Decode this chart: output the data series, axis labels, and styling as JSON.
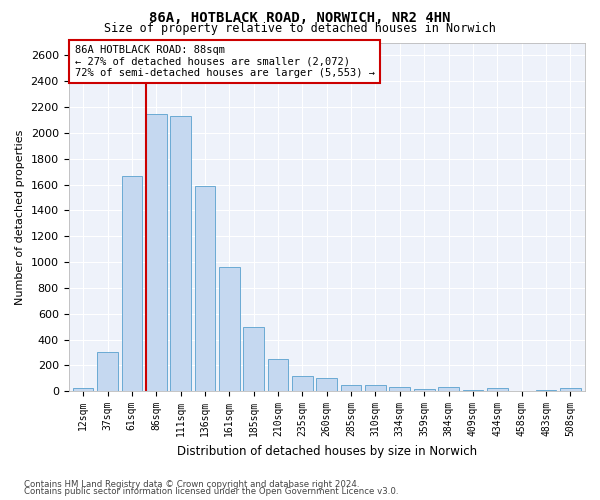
{
  "title": "86A, HOTBLACK ROAD, NORWICH, NR2 4HN",
  "subtitle": "Size of property relative to detached houses in Norwich",
  "xlabel": "Distribution of detached houses by size in Norwich",
  "ylabel": "Number of detached properties",
  "bar_color": "#c5d8f0",
  "bar_edge_color": "#6aaad4",
  "background_color": "#eef2fa",
  "annotation_line_color": "#cc0000",
  "annotation_box_text": "86A HOTBLACK ROAD: 88sqm\n← 27% of detached houses are smaller (2,072)\n72% of semi-detached houses are larger (5,553) →",
  "categories": [
    "12sqm",
    "37sqm",
    "61sqm",
    "86sqm",
    "111sqm",
    "136sqm",
    "161sqm",
    "185sqm",
    "210sqm",
    "235sqm",
    "260sqm",
    "285sqm",
    "310sqm",
    "334sqm",
    "359sqm",
    "384sqm",
    "409sqm",
    "434sqm",
    "458sqm",
    "483sqm",
    "508sqm"
  ],
  "values": [
    25,
    300,
    1670,
    2150,
    2130,
    1590,
    960,
    500,
    250,
    120,
    100,
    50,
    45,
    30,
    20,
    30,
    10,
    25,
    5,
    10,
    25
  ],
  "ylim": [
    0,
    2700
  ],
  "yticks": [
    0,
    200,
    400,
    600,
    800,
    1000,
    1200,
    1400,
    1600,
    1800,
    2000,
    2200,
    2400,
    2600
  ],
  "footnote1": "Contains HM Land Registry data © Crown copyright and database right 2024.",
  "footnote2": "Contains public sector information licensed under the Open Government Licence v3.0.",
  "property_bin_index": 3
}
